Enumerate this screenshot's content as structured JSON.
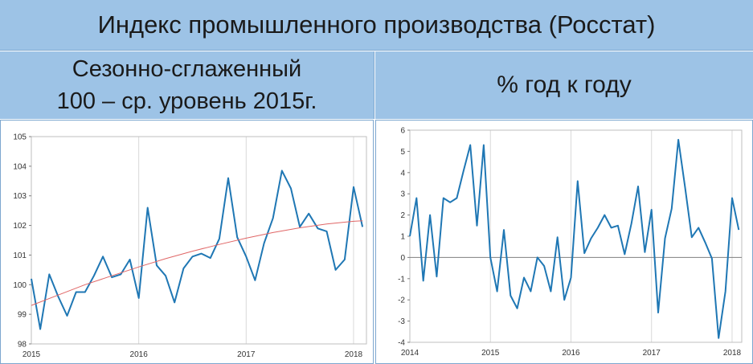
{
  "header": {
    "title": "Индекс промышленного производства (Росстат)",
    "left_subtitle_line1": "Сезонно-сглаженный",
    "left_subtitle_line2": "100 – ср. уровень 2015г.",
    "right_subtitle": "% год к году"
  },
  "colors": {
    "series": "#1f77b4",
    "trend": "#e06666",
    "banner": "#9dc3e6"
  },
  "chart_data": [
    {
      "type": "line",
      "title": "",
      "xlabel": "",
      "ylabel": "",
      "xlim": [
        2015.0,
        2018.12
      ],
      "ylim": [
        98,
        105
      ],
      "x_ticks": [
        2015,
        2016,
        2017,
        2018
      ],
      "y_ticks": [
        98,
        99,
        100,
        101,
        102,
        103,
        104,
        105
      ],
      "grid": "vertical",
      "series": [
        {
          "color": "#1f77b4",
          "x": [
            2015.0,
            2015.083,
            2015.167,
            2015.25,
            2015.333,
            2015.417,
            2015.5,
            2015.583,
            2015.667,
            2015.75,
            2015.833,
            2015.917,
            2016.0,
            2016.083,
            2016.167,
            2016.25,
            2016.333,
            2016.417,
            2016.5,
            2016.583,
            2016.667,
            2016.75,
            2016.833,
            2016.917,
            2017.0,
            2017.083,
            2017.167,
            2017.25,
            2017.333,
            2017.417,
            2017.5,
            2017.583,
            2017.667,
            2017.75,
            2017.833,
            2017.917,
            2018.0,
            2018.083
          ],
          "values": [
            100.2,
            98.5,
            100.35,
            99.6,
            98.95,
            99.75,
            99.75,
            100.3,
            100.95,
            100.25,
            100.35,
            100.85,
            99.55,
            102.6,
            100.65,
            100.3,
            99.4,
            100.55,
            100.95,
            101.05,
            100.9,
            101.55,
            103.6,
            101.6,
            100.95,
            100.15,
            101.4,
            102.25,
            103.85,
            103.25,
            101.95,
            102.4,
            101.9,
            101.8,
            100.5,
            100.85,
            103.3,
            101.95
          ]
        },
        {
          "color": "#e06666",
          "x": [
            2015.0,
            2015.25,
            2015.5,
            2015.75,
            2016.0,
            2016.25,
            2016.5,
            2016.75,
            2017.0,
            2017.25,
            2017.5,
            2017.75,
            2018.0,
            2018.083
          ],
          "values": [
            99.3,
            99.65,
            100.0,
            100.3,
            100.6,
            100.88,
            101.13,
            101.36,
            101.57,
            101.76,
            101.92,
            102.05,
            102.14,
            102.16
          ]
        }
      ]
    },
    {
      "type": "line",
      "title": "",
      "xlabel": "",
      "ylabel": "",
      "xlim": [
        2014.0,
        2018.12
      ],
      "ylim": [
        -4,
        6
      ],
      "x_ticks": [
        2014,
        2015,
        2016,
        2017,
        2018
      ],
      "y_ticks": [
        -4,
        -3,
        -2,
        -1,
        0,
        1,
        2,
        3,
        4,
        5,
        6
      ],
      "grid": "vertical",
      "series": [
        {
          "color": "#1f77b4",
          "x": [
            2014.0,
            2014.083,
            2014.167,
            2014.25,
            2014.333,
            2014.417,
            2014.5,
            2014.583,
            2014.667,
            2014.75,
            2014.833,
            2014.917,
            2015.0,
            2015.083,
            2015.167,
            2015.25,
            2015.333,
            2015.417,
            2015.5,
            2015.583,
            2015.667,
            2015.75,
            2015.833,
            2015.917,
            2016.0,
            2016.083,
            2016.167,
            2016.25,
            2016.333,
            2016.417,
            2016.5,
            2016.583,
            2016.667,
            2016.75,
            2016.833,
            2016.917,
            2017.0,
            2017.083,
            2017.167,
            2017.25,
            2017.333,
            2017.417,
            2017.5,
            2017.583,
            2017.667,
            2017.75,
            2017.833,
            2017.917,
            2018.0,
            2018.083
          ],
          "values": [
            1.0,
            2.8,
            -1.1,
            2.0,
            -0.9,
            2.8,
            2.6,
            2.8,
            4.1,
            5.3,
            1.5,
            5.3,
            0.0,
            -1.6,
            1.3,
            -1.8,
            -2.4,
            -0.95,
            -1.6,
            0.0,
            -0.4,
            -1.6,
            0.95,
            -2.0,
            -0.95,
            3.6,
            0.2,
            0.9,
            1.4,
            2.0,
            1.4,
            1.5,
            0.15,
            1.6,
            3.35,
            0.25,
            2.25,
            -2.6,
            0.9,
            2.3,
            5.55,
            3.3,
            0.95,
            1.4,
            0.7,
            -0.05,
            -3.8,
            -1.6,
            2.8,
            1.3
          ]
        }
      ]
    }
  ]
}
